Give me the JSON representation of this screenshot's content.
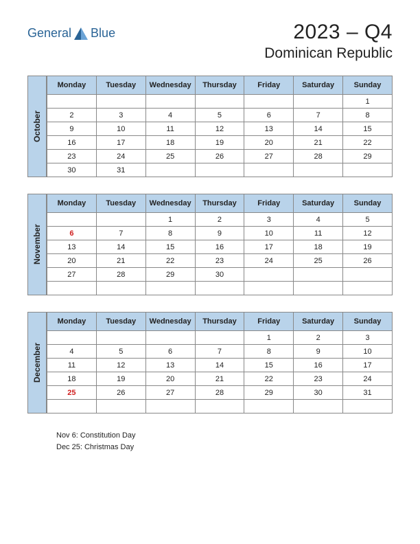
{
  "logo": {
    "text1": "General",
    "text2": "Blue"
  },
  "title": {
    "year_quarter": "2023 – Q4",
    "country": "Dominican Republic"
  },
  "colors": {
    "header_bg": "#b9d3ea",
    "border": "#888888",
    "text": "#222222",
    "holiday": "#d02020",
    "logo": "#2a6496",
    "background": "#ffffff"
  },
  "day_headers": [
    "Monday",
    "Tuesday",
    "Wednesday",
    "Thursday",
    "Friday",
    "Saturday",
    "Sunday"
  ],
  "months": [
    {
      "name": "October",
      "rows": [
        [
          "",
          "",
          "",
          "",
          "",
          "",
          "1"
        ],
        [
          "2",
          "3",
          "4",
          "5",
          "6",
          "7",
          "8"
        ],
        [
          "9",
          "10",
          "11",
          "12",
          "13",
          "14",
          "15"
        ],
        [
          "16",
          "17",
          "18",
          "19",
          "20",
          "21",
          "22"
        ],
        [
          "23",
          "24",
          "25",
          "26",
          "27",
          "28",
          "29"
        ],
        [
          "30",
          "31",
          "",
          "",
          "",
          "",
          ""
        ]
      ],
      "holidays": []
    },
    {
      "name": "November",
      "rows": [
        [
          "",
          "",
          "1",
          "2",
          "3",
          "4",
          "5"
        ],
        [
          "6",
          "7",
          "8",
          "9",
          "10",
          "11",
          "12"
        ],
        [
          "13",
          "14",
          "15",
          "16",
          "17",
          "18",
          "19"
        ],
        [
          "20",
          "21",
          "22",
          "23",
          "24",
          "25",
          "26"
        ],
        [
          "27",
          "28",
          "29",
          "30",
          "",
          "",
          ""
        ],
        [
          "",
          "",
          "",
          "",
          "",
          "",
          ""
        ]
      ],
      "holidays": [
        "6"
      ]
    },
    {
      "name": "December",
      "rows": [
        [
          "",
          "",
          "",
          "",
          "1",
          "2",
          "3"
        ],
        [
          "4",
          "5",
          "6",
          "7",
          "8",
          "9",
          "10"
        ],
        [
          "11",
          "12",
          "13",
          "14",
          "15",
          "16",
          "17"
        ],
        [
          "18",
          "19",
          "20",
          "21",
          "22",
          "23",
          "24"
        ],
        [
          "25",
          "26",
          "27",
          "28",
          "29",
          "30",
          "31"
        ],
        [
          "",
          "",
          "",
          "",
          "",
          "",
          ""
        ]
      ],
      "holidays": [
        "25"
      ]
    }
  ],
  "holiday_notes": [
    "Nov 6: Constitution Day",
    "Dec 25: Christmas Day"
  ]
}
